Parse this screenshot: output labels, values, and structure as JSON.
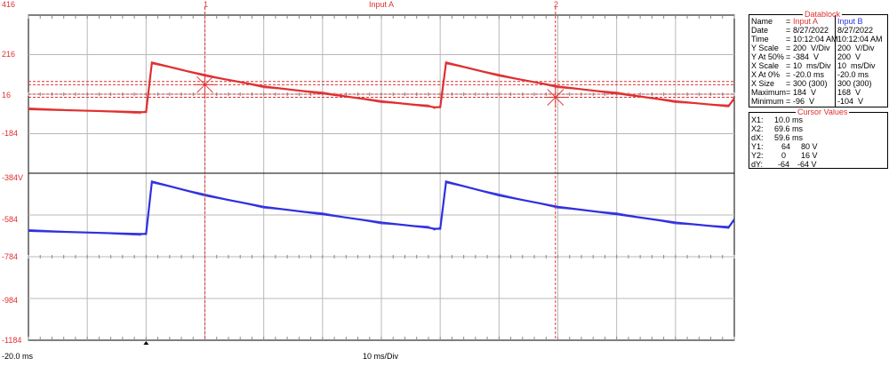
{
  "header": {
    "channel_title": "Input A",
    "cursor1_label": "1",
    "cursor2_label": "2"
  },
  "yaxis": {
    "top": [
      "416",
      "216",
      "16",
      "-184"
    ],
    "bottom": [
      "-384V",
      "-584",
      "-784",
      "-984",
      "-1184"
    ]
  },
  "xaxis": {
    "start": "-20.0 ms",
    "scale": "10 ms/Div"
  },
  "datablock": {
    "title": "Datablock",
    "col_a": "Input A",
    "col_b": "Input B",
    "rows": [
      {
        "label": "Name",
        "a": "",
        "b": ""
      },
      {
        "label": "Date",
        "a": "8/27/2022",
        "b": "8/27/2022"
      },
      {
        "label": "Time",
        "a": "10:12:04 AM",
        "b": "10:12:04 AM"
      },
      {
        "label": "Y Scale",
        "a": "200  V/Div",
        "b": "200  V/Div"
      },
      {
        "label": "Y At 50%",
        "a": "-384  V",
        "b": "200  V"
      },
      {
        "label": "X Scale",
        "a": "10  ms/Div",
        "b": "10  ms/Div"
      },
      {
        "label": "X At 0%",
        "a": "-20.0 ms",
        "b": "-20.0 ms"
      },
      {
        "label": "X Size",
        "a": "300 (300)",
        "b": "300 (300)"
      },
      {
        "label": "Maximum",
        "a": "184  V",
        "b": "168  V"
      },
      {
        "label": "Minimum",
        "a": "-96  V",
        "b": "-104  V"
      }
    ]
  },
  "cursor_values": {
    "title": "Cursor Values",
    "rows": [
      {
        "label": "X1:",
        "a": "10.0 ms",
        "b": ""
      },
      {
        "label": "X2:",
        "a": "69.6 ms",
        "b": ""
      },
      {
        "label": "dX:",
        "a": "59.6 ms",
        "b": ""
      },
      {
        "label": "Y1:",
        "a": "64",
        "b": "80 V"
      },
      {
        "label": "Y2:",
        "a": "0",
        "b": "16 V"
      },
      {
        "label": "dY:",
        "a": "-64",
        "b": "-64 V"
      }
    ]
  },
  "chart_data": {
    "type": "line",
    "x_unit": "ms",
    "xlim": [
      -20,
      100
    ],
    "series": [
      {
        "name": "Input A",
        "color": "#e03030",
        "ylim": [
          -384,
          416
        ],
        "x": [
          -20,
          -1,
          0,
          1,
          10,
          20,
          30,
          40,
          48,
          49,
          50,
          51,
          60,
          70,
          80,
          90,
          99,
          100
        ],
        "y": [
          -60,
          -75,
          -75,
          176,
          110,
          55,
          20,
          -20,
          -45,
          -50,
          -50,
          176,
          110,
          55,
          20,
          -20,
          -45,
          -5
        ]
      },
      {
        "name": "Input B",
        "color": "#3030e0",
        "ylim": [
          -1184,
          -384
        ],
        "x": [
          -20,
          -1,
          0,
          1,
          10,
          20,
          30,
          40,
          48,
          49,
          50,
          51,
          60,
          70,
          80,
          90,
          99,
          100
        ],
        "y": [
          -660,
          -675,
          -675,
          -424,
          -490,
          -545,
          -580,
          -620,
          -645,
          -650,
          -650,
          -424,
          -490,
          -545,
          -580,
          -620,
          -645,
          -605
        ]
      }
    ],
    "cursors_x": [
      10.0,
      69.6
    ],
    "cursors_y": [
      64,
      80,
      0,
      16
    ]
  }
}
